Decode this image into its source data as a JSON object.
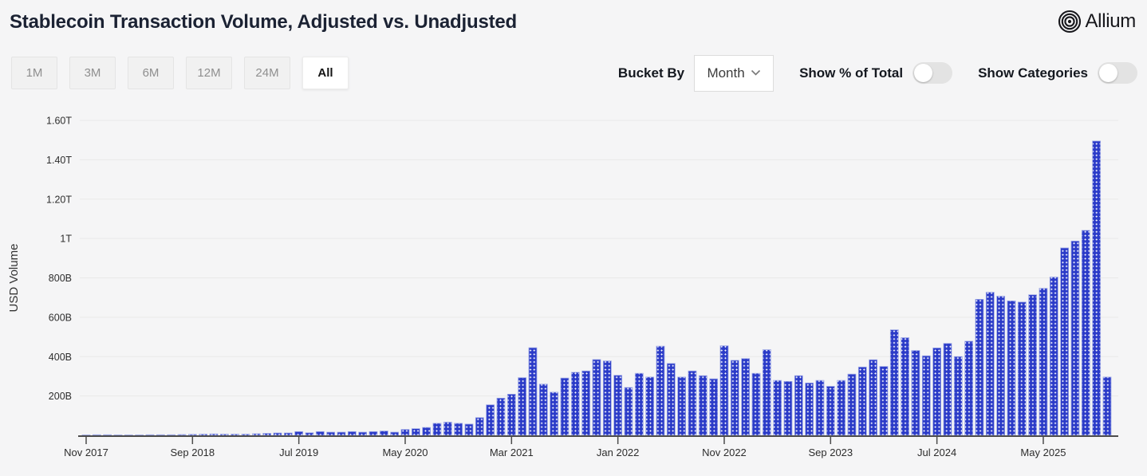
{
  "header": {
    "title": "Stablecoin Transaction Volume, Adjusted vs. Unadjusted",
    "brand": "Allium"
  },
  "controls": {
    "ranges": [
      {
        "label": "1M",
        "active": false
      },
      {
        "label": "3M",
        "active": false
      },
      {
        "label": "6M",
        "active": false
      },
      {
        "label": "12M",
        "active": false
      },
      {
        "label": "24M",
        "active": false
      },
      {
        "label": "All",
        "active": true
      }
    ],
    "bucket_by_label": "Bucket By",
    "bucket_value": "Month",
    "toggles": [
      {
        "label": "Show % of Total",
        "on": false
      },
      {
        "label": "Show Categories",
        "on": false
      }
    ]
  },
  "chart_data": {
    "type": "bar",
    "title": "Stablecoin Transaction Volume, Adjusted vs. Unadjusted",
    "xlabel": "",
    "ylabel": "USD Volume",
    "unit": "billions USD",
    "ylim": [
      0,
      1600
    ],
    "grid": true,
    "bar_color": "#2b3bc8",
    "bar_pattern_dot_color": "#ffffff",
    "bar_edge_color": "#9aa5e6",
    "grid_color": "#e9e9e9",
    "axis_color": "#4c4c4c",
    "y_ticks": [
      {
        "value": 200,
        "label": "200B"
      },
      {
        "value": 400,
        "label": "400B"
      },
      {
        "value": 600,
        "label": "600B"
      },
      {
        "value": 800,
        "label": "800B"
      },
      {
        "value": 1000,
        "label": "1T"
      },
      {
        "value": 1200,
        "label": "1.20T"
      },
      {
        "value": 1400,
        "label": "1.40T"
      },
      {
        "value": 1600,
        "label": "1.60T"
      }
    ],
    "x_tick_every": 10,
    "x": [
      "Nov 2017",
      "Dec 2017",
      "Jan 2018",
      "Feb 2018",
      "Mar 2018",
      "Apr 2018",
      "May 2018",
      "Jun 2018",
      "Jul 2018",
      "Aug 2018",
      "Sep 2018",
      "Oct 2018",
      "Nov 2018",
      "Dec 2018",
      "Jan 2019",
      "Feb 2019",
      "Mar 2019",
      "Apr 2019",
      "May 2019",
      "Jun 2019",
      "Jul 2019",
      "Aug 2019",
      "Sep 2019",
      "Oct 2019",
      "Nov 2019",
      "Dec 2019",
      "Jan 2020",
      "Feb 2020",
      "Mar 2020",
      "Apr 2020",
      "May 2020",
      "Jun 2020",
      "Jul 2020",
      "Aug 2020",
      "Sep 2020",
      "Oct 2020",
      "Nov 2020",
      "Dec 2020",
      "Jan 2021",
      "Feb 2021",
      "Mar 2021",
      "Apr 2021",
      "May 2021",
      "Jun 2021",
      "Jul 2021",
      "Aug 2021",
      "Sep 2021",
      "Oct 2021",
      "Nov 2021",
      "Dec 2021",
      "Jan 2022",
      "Feb 2022",
      "Mar 2022",
      "Apr 2022",
      "May 2022",
      "Jun 2022",
      "Jul 2022",
      "Aug 2022",
      "Sep 2022",
      "Oct 2022",
      "Nov 2022",
      "Dec 2022",
      "Jan 2023",
      "Feb 2023",
      "Mar 2023",
      "Apr 2023",
      "May 2023",
      "Jun 2023",
      "Jul 2023",
      "Aug 2023",
      "Sep 2023",
      "Oct 2023",
      "Nov 2023",
      "Dec 2023",
      "Jan 2024",
      "Feb 2024",
      "Mar 2024",
      "Apr 2024",
      "May 2024",
      "Jun 2024",
      "Jul 2024",
      "Aug 2024",
      "Sep 2024",
      "Oct 2024",
      "Nov 2024",
      "Dec 2024",
      "Jan 2025",
      "Feb 2025",
      "Mar 2025",
      "Apr 2025",
      "May 2025",
      "Jun 2025",
      "Jul 2025",
      "Aug 2025",
      "Sep 2025",
      "Oct 2025",
      "Nov 2025"
    ],
    "values": [
      2,
      3,
      3,
      2,
      2,
      2,
      3,
      3,
      3,
      4,
      5,
      6,
      7,
      6,
      6,
      6,
      8,
      10,
      12,
      12,
      19,
      13,
      19,
      16,
      16,
      19,
      16,
      19,
      22,
      16,
      30,
      34,
      40,
      61,
      67,
      61,
      57,
      90,
      155,
      189,
      209,
      293,
      445,
      260,
      219,
      291,
      320,
      327,
      385,
      378,
      305,
      243,
      315,
      296,
      453,
      365,
      296,
      327,
      303,
      287,
      455,
      381,
      390,
      315,
      435,
      279,
      274,
      303,
      266,
      279,
      249,
      279,
      311,
      347,
      384,
      350,
      536,
      496,
      431,
      404,
      444,
      467,
      400,
      478,
      691,
      727,
      707,
      683,
      677,
      714,
      747,
      804,
      952,
      987,
      1041,
      1495,
      296
    ]
  }
}
